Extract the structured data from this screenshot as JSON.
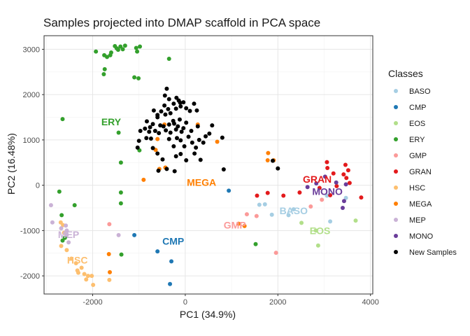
{
  "chart_data": {
    "type": "scatter",
    "title": "Samples projected into DMAP scaffold in PCA space",
    "xlabel": "PC1 (34.9%)",
    "ylabel": "PC2 (16.48%)",
    "xlim": [
      -3050,
      4050
    ],
    "ylim": [
      -2400,
      3300
    ],
    "xticks": [
      -2000,
      0,
      2000,
      4000
    ],
    "yticks": [
      -2000,
      -1000,
      0,
      1000,
      2000,
      3000
    ],
    "grid": true,
    "legend_title": "Classes",
    "legend_position": "right",
    "series": [
      {
        "name": "BASO",
        "color": "#A6CEE3",
        "points": [
          [
            1600,
            -430
          ],
          [
            1720,
            -420
          ],
          [
            1870,
            -650
          ],
          [
            2230,
            -660
          ],
          [
            2340,
            -530
          ],
          [
            3060,
            -230
          ],
          [
            3130,
            -800
          ],
          [
            3470,
            -280
          ]
        ]
      },
      {
        "name": "CMP",
        "color": "#1F78B4",
        "points": [
          [
            -1100,
            -1100
          ],
          [
            -600,
            -1460
          ],
          [
            -300,
            -1680
          ],
          [
            -330,
            -2180
          ],
          [
            940,
            -120
          ]
        ]
      },
      {
        "name": "EOS",
        "color": "#B2DF8A",
        "points": [
          [
            2510,
            -830
          ],
          [
            2820,
            -1000
          ],
          [
            2870,
            -1330
          ],
          [
            3680,
            -780
          ]
        ]
      },
      {
        "name": "ERY",
        "color": "#33A02C",
        "points": [
          [
            -1600,
            2930
          ],
          [
            -1450,
            2990
          ],
          [
            -1400,
            3060
          ],
          [
            -1300,
            3080
          ],
          [
            -1060,
            3030
          ],
          [
            -980,
            3060
          ],
          [
            -1520,
            3070
          ],
          [
            -1350,
            3000
          ],
          [
            -1480,
            3020
          ],
          [
            -1690,
            2830
          ],
          [
            -1620,
            2870
          ],
          [
            -1040,
            2950
          ],
          [
            -1930,
            2950
          ],
          [
            -1750,
            2870
          ],
          [
            -1740,
            2560
          ],
          [
            -1760,
            2450
          ],
          [
            -1100,
            2380
          ],
          [
            -1010,
            2360
          ],
          [
            -350,
            2790
          ],
          [
            -2650,
            1460
          ],
          [
            -1440,
            1160
          ],
          [
            -1390,
            500
          ],
          [
            -1390,
            -160
          ],
          [
            -1390,
            -400
          ],
          [
            -2720,
            -140
          ],
          [
            -2390,
            -440
          ],
          [
            -2670,
            -660
          ],
          [
            -2650,
            -1220
          ],
          [
            -2600,
            -1160
          ],
          [
            -1380,
            -1530
          ],
          [
            -990,
            770
          ],
          [
            1520,
            -1300
          ]
        ]
      },
      {
        "name": "GMP",
        "color": "#FB9A99",
        "points": [
          [
            -1640,
            -860
          ],
          [
            1330,
            -640
          ],
          [
            1540,
            -680
          ],
          [
            2710,
            -470
          ],
          [
            2950,
            -320
          ],
          [
            1960,
            -1490
          ]
        ]
      },
      {
        "name": "GRAN",
        "color": "#E31A1C",
        "points": [
          [
            1550,
            -230
          ],
          [
            1780,
            -170
          ],
          [
            2120,
            -230
          ],
          [
            2470,
            -160
          ],
          [
            3060,
            510
          ],
          [
            3070,
            380
          ],
          [
            3200,
            260
          ],
          [
            3270,
            -20
          ],
          [
            3420,
            240
          ],
          [
            3480,
            160
          ],
          [
            3460,
            450
          ],
          [
            3520,
            330
          ],
          [
            3550,
            50
          ],
          [
            3800,
            -270
          ],
          [
            2900,
            -60
          ],
          [
            3130,
            -220
          ]
        ]
      },
      {
        "name": "HSC",
        "color": "#FDBF6F",
        "points": [
          [
            -2690,
            -820
          ],
          [
            -2640,
            -880
          ],
          [
            -2620,
            -1050
          ],
          [
            -2680,
            -1340
          ],
          [
            -2560,
            -1430
          ],
          [
            -2460,
            -1620
          ],
          [
            -2360,
            -1720
          ],
          [
            -2330,
            -1880
          ],
          [
            -2310,
            -1930
          ],
          [
            -2240,
            -1820
          ],
          [
            -2180,
            -1960
          ],
          [
            -2100,
            -2000
          ],
          [
            -2020,
            -2000
          ],
          [
            -2140,
            -2080
          ],
          [
            -1990,
            -2200
          ],
          [
            -1640,
            -2090
          ]
        ]
      },
      {
        "name": "MEGA",
        "color": "#FF7F00",
        "points": [
          [
            -600,
            1020
          ],
          [
            -640,
            780
          ],
          [
            -450,
            1340
          ],
          [
            -560,
            360
          ],
          [
            -430,
            390
          ],
          [
            270,
            1340
          ],
          [
            690,
            960
          ],
          [
            -900,
            120
          ],
          [
            -1630,
            -1920
          ],
          [
            -1650,
            -1520
          ],
          [
            1150,
            -850
          ],
          [
            1280,
            -900
          ],
          [
            1790,
            710
          ],
          [
            1780,
            550
          ],
          [
            1910,
            550
          ]
        ]
      },
      {
        "name": "MEP",
        "color": "#CAB2D6",
        "points": [
          [
            -2900,
            -440
          ],
          [
            -2870,
            -820
          ],
          [
            -2680,
            -950
          ],
          [
            -2580,
            -890
          ],
          [
            -2560,
            -1000
          ],
          [
            -2560,
            -1090
          ],
          [
            -2520,
            -1260
          ],
          [
            -1440,
            -1100
          ]
        ]
      },
      {
        "name": "MONO",
        "color": "#6A3D9A",
        "points": [
          [
            2640,
            -40
          ],
          [
            2830,
            40
          ],
          [
            3020,
            190
          ],
          [
            3260,
            60
          ],
          [
            3430,
            -350
          ],
          [
            3400,
            -500
          ],
          [
            3470,
            20
          ]
        ]
      },
      {
        "name": "New Samples",
        "color": "#000000",
        "points": [
          [
            -700,
            1350
          ],
          [
            -760,
            1280
          ],
          [
            -650,
            1200
          ],
          [
            -570,
            1150
          ],
          [
            -540,
            1320
          ],
          [
            -470,
            1300
          ],
          [
            -420,
            1210
          ],
          [
            -350,
            1340
          ],
          [
            -320,
            1160
          ],
          [
            -260,
            1420
          ],
          [
            -240,
            1360
          ],
          [
            -200,
            1230
          ],
          [
            -160,
            1300
          ],
          [
            -120,
            1450
          ],
          [
            -80,
            1180
          ],
          [
            -40,
            1260
          ],
          [
            20,
            1380
          ],
          [
            -680,
            1650
          ],
          [
            -600,
            1550
          ],
          [
            -520,
            1630
          ],
          [
            -450,
            1760
          ],
          [
            -370,
            1680
          ],
          [
            -320,
            1590
          ],
          [
            -250,
            1800
          ],
          [
            -200,
            1690
          ],
          [
            -140,
            1870
          ],
          [
            -100,
            1740
          ],
          [
            -40,
            1830
          ],
          [
            20,
            1700
          ],
          [
            100,
            1640
          ],
          [
            190,
            1800
          ],
          [
            250,
            1650
          ],
          [
            -400,
            2130
          ],
          [
            -350,
            1900
          ],
          [
            -190,
            1930
          ],
          [
            -110,
            1820
          ],
          [
            -440,
            1980
          ],
          [
            -600,
            1500
          ],
          [
            -830,
            1410
          ],
          [
            -780,
            1180
          ],
          [
            -740,
            1030
          ],
          [
            -700,
            820
          ],
          [
            -840,
            1040
          ],
          [
            -1000,
            980
          ],
          [
            -1030,
            830
          ],
          [
            -970,
            1200
          ],
          [
            -870,
            1250
          ],
          [
            -350,
            1020
          ],
          [
            -250,
            860
          ],
          [
            -180,
            1040
          ],
          [
            -100,
            990
          ],
          [
            -20,
            860
          ],
          [
            70,
            1070
          ],
          [
            150,
            940
          ],
          [
            230,
            830
          ],
          [
            300,
            1000
          ],
          [
            390,
            940
          ],
          [
            440,
            1080
          ],
          [
            520,
            1140
          ],
          [
            -200,
            640
          ],
          [
            -100,
            690
          ],
          [
            20,
            550
          ],
          [
            200,
            700
          ],
          [
            330,
            560
          ],
          [
            -580,
            320
          ],
          [
            -490,
            570
          ],
          [
            -600,
            700
          ],
          [
            -230,
            310
          ],
          [
            -400,
            360
          ],
          [
            130,
            1200
          ],
          [
            270,
            1300
          ],
          [
            580,
            1320
          ],
          [
            800,
            1050
          ],
          [
            830,
            350
          ],
          [
            1890,
            540
          ],
          [
            2000,
            370
          ],
          [
            -430,
            1560
          ]
        ]
      }
    ],
    "class_labels": [
      {
        "text": "ERY",
        "series": "ERY",
        "x": -1600,
        "y": 1400
      },
      {
        "text": "MEGA",
        "series": "MEGA",
        "x": 350,
        "y": 60
      },
      {
        "text": "CMP",
        "series": "CMP",
        "x": -260,
        "y": -1230
      },
      {
        "text": "GMP",
        "series": "GMP",
        "x": 1070,
        "y": -880
      },
      {
        "text": "BASO",
        "series": "BASO",
        "x": 2340,
        "y": -560
      },
      {
        "text": "EOS",
        "series": "EOS",
        "x": 2910,
        "y": -1000
      },
      {
        "text": "GRAN",
        "series": "GRAN",
        "x": 2850,
        "y": 130
      },
      {
        "text": "MONO",
        "series": "MONO",
        "x": 3070,
        "y": -140
      },
      {
        "text": "MEP",
        "series": "MEP",
        "x": -2520,
        "y": -1090
      },
      {
        "text": "HSC",
        "series": "HSC",
        "x": -2330,
        "y": -1650
      }
    ]
  }
}
